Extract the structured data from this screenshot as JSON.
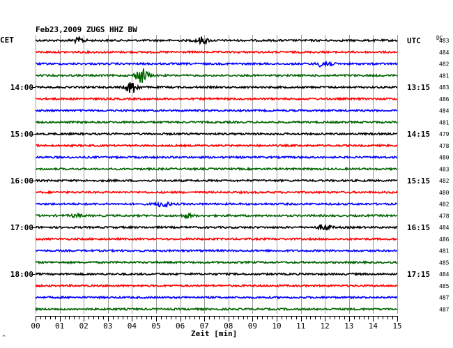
{
  "chart_data": {
    "type": "line",
    "title": "Feb23,2009   ZUGS HHZ BW",
    "xlabel": "Zeit [min]",
    "left_axis_label": "CET",
    "right_axis_label": "UTC",
    "dc_label": "DC",
    "xlim": [
      0,
      15
    ],
    "x_ticks": [
      "00",
      "01",
      "02",
      "03",
      "04",
      "05",
      "06",
      "07",
      "08",
      "09",
      "10",
      "11",
      "12",
      "13",
      "14",
      "15"
    ],
    "trace_colors": [
      "#000000",
      "#ff0000",
      "#0000ff",
      "#006400"
    ],
    "left_time_labels": [
      {
        "row": 4,
        "label": "14:00"
      },
      {
        "row": 8,
        "label": "15:00"
      },
      {
        "row": 12,
        "label": "16:00"
      },
      {
        "row": 16,
        "label": "17:00"
      },
      {
        "row": 20,
        "label": "18:00"
      }
    ],
    "right_time_labels": [
      {
        "row": 0,
        "label": "UTC"
      },
      {
        "row": 4,
        "label": "13:15"
      },
      {
        "row": 8,
        "label": "14:15"
      },
      {
        "row": 12,
        "label": "15:15"
      },
      {
        "row": 16,
        "label": "16:15"
      },
      {
        "row": 20,
        "label": "17:15"
      }
    ],
    "dc_offsets": [
      "483",
      "484",
      "482",
      "481",
      "483",
      "486",
      "484",
      "481",
      "479",
      "478",
      "480",
      "483",
      "482",
      "480",
      "482",
      "478",
      "484",
      "486",
      "481",
      "485",
      "484",
      "485",
      "487",
      "487"
    ],
    "events": [
      {
        "row": 0,
        "minute": 1.8,
        "amp": 0.7
      },
      {
        "row": 0,
        "minute": 6.9,
        "amp": 1.0
      },
      {
        "row": 2,
        "minute": 12.0,
        "amp": 1.4
      },
      {
        "row": 3,
        "minute": 4.4,
        "amp": 2.4
      },
      {
        "row": 4,
        "minute": 4.0,
        "amp": 1.9
      },
      {
        "row": 14,
        "minute": 5.3,
        "amp": 1.0
      },
      {
        "row": 15,
        "minute": 6.3,
        "amp": 0.5
      },
      {
        "row": 15,
        "minute": 1.7,
        "amp": 0.4
      },
      {
        "row": 16,
        "minute": 12.0,
        "amp": 0.9
      }
    ],
    "bottom_mark": "^",
    "grid": true
  }
}
